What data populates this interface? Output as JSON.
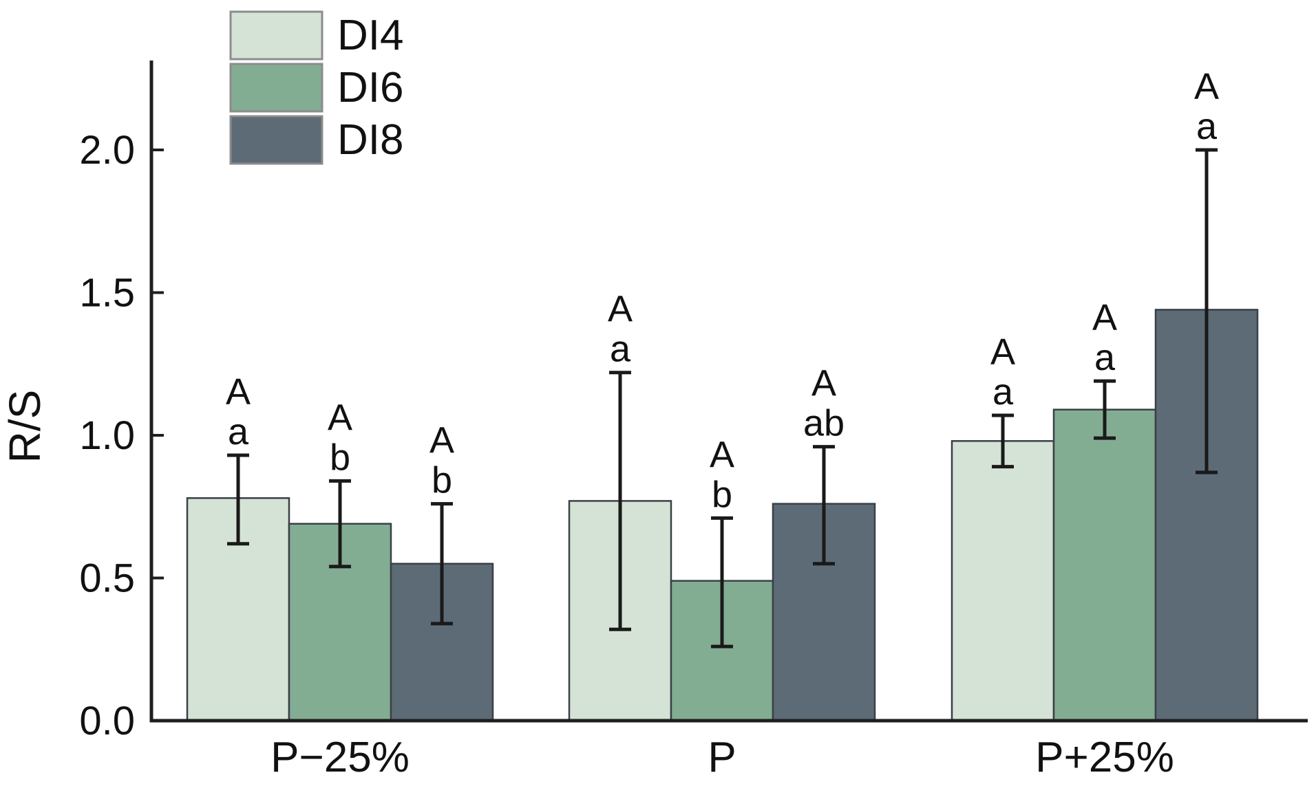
{
  "chart_data": {
    "type": "bar",
    "title": "",
    "xlabel": "",
    "ylabel": "R/S",
    "categories": [
      "P−25%",
      "P",
      "P+25%"
    ],
    "yticks": [
      "0.0",
      "0.5",
      "1.0",
      "1.5",
      "2.0"
    ],
    "ytick_values": [
      0,
      0.5,
      1.0,
      1.5,
      2.0
    ],
    "ylim": [
      0,
      2.3
    ],
    "grid": false,
    "legend_position": "top-left",
    "series": [
      {
        "name": "DI4",
        "color": "#d5e3d6",
        "values": [
          0.78,
          0.77,
          0.98
        ],
        "err_low": [
          0.62,
          0.32,
          0.89
        ],
        "err_high": [
          0.93,
          1.22,
          1.07
        ],
        "sig_upper": [
          "A",
          "A",
          "A"
        ],
        "sig_lower": [
          "a",
          "a",
          "a"
        ]
      },
      {
        "name": "DI6",
        "color": "#83ad93",
        "values": [
          0.69,
          0.49,
          1.09
        ],
        "err_low": [
          0.54,
          0.26,
          0.99
        ],
        "err_high": [
          0.84,
          0.71,
          1.19
        ],
        "sig_upper": [
          "A",
          "A",
          "A"
        ],
        "sig_lower": [
          "b",
          "b",
          "a"
        ]
      },
      {
        "name": "DI8",
        "color": "#5d6b77",
        "values": [
          0.55,
          0.76,
          1.44
        ],
        "err_low": [
          0.34,
          0.55,
          0.87
        ],
        "err_high": [
          0.76,
          0.96,
          2.0
        ],
        "sig_upper": [
          "A",
          "A",
          "A"
        ],
        "sig_lower": [
          "b",
          "ab",
          "a"
        ]
      }
    ]
  },
  "colors": {
    "axis": "#1f1f1f",
    "bar_stroke": "#3a4046",
    "error_bar": "#1a1a1a",
    "legend_swatch_border": "#8c8c8c",
    "text": "#111111"
  }
}
